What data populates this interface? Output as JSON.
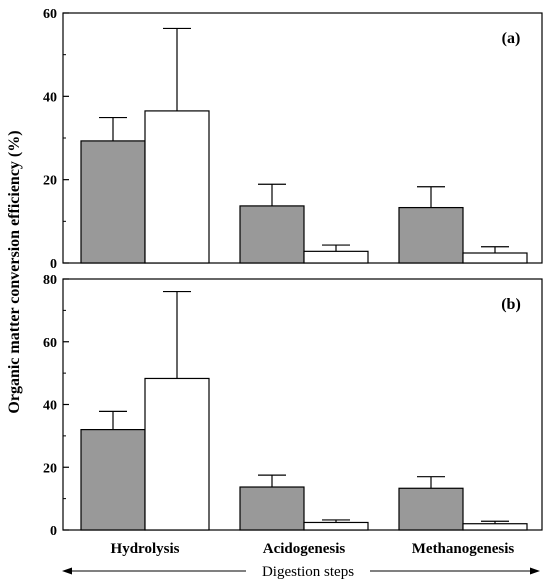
{
  "chart_data": {
    "type": "bar",
    "ylabel": "Organic matter conversion efficiency (%)",
    "xlabel": "Digestion steps",
    "categories": [
      "Hydrolysis",
      "Acidogenesis",
      "Methanogenesis"
    ],
    "panels": [
      {
        "tag": "(a)",
        "ylim": [
          0,
          60
        ],
        "yticks": [
          0,
          20,
          40,
          60
        ],
        "series": [
          {
            "values": [
              29.3,
              13.7,
              13.3
            ],
            "errors": [
              5.6,
              5.2,
              5.0
            ],
            "color": "#999999"
          },
          {
            "values": [
              36.5,
              2.8,
              2.4
            ],
            "errors": [
              19.8,
              1.5,
              1.5
            ],
            "color": "#ffffff"
          }
        ]
      },
      {
        "tag": "(b)",
        "ylim": [
          0,
          80
        ],
        "yticks": [
          0,
          20,
          40,
          60,
          80
        ],
        "series": [
          {
            "values": [
              32.0,
              13.7,
              13.3
            ],
            "errors": [
              5.8,
              3.8,
              3.7
            ],
            "color": "#999999"
          },
          {
            "values": [
              48.3,
              2.4,
              2.0
            ],
            "errors": [
              27.7,
              0.8,
              0.8
            ],
            "color": "#ffffff"
          }
        ]
      }
    ]
  }
}
